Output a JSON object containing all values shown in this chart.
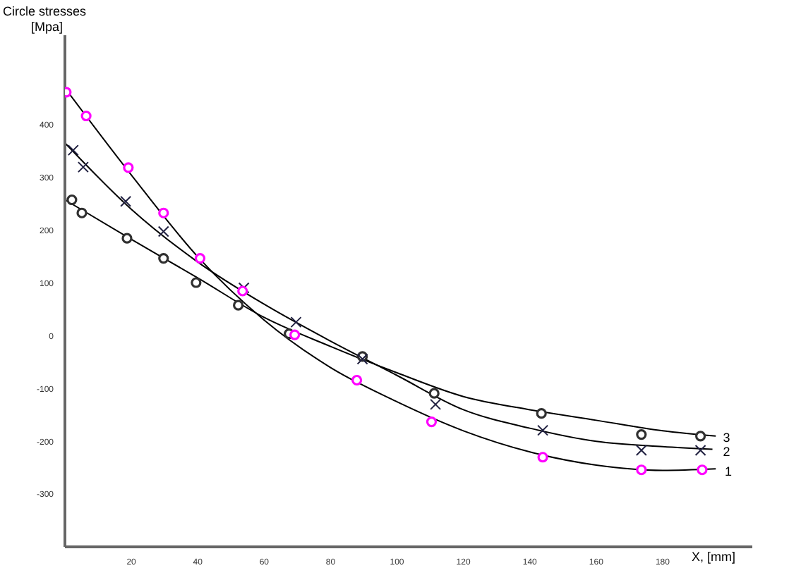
{
  "chart_data": {
    "type": "scatter",
    "title": "Circle stresses",
    "ylabel": "[Mpa]",
    "xlabel": "X, [mm]",
    "xlim": [
      0,
      207
    ],
    "ylim": [
      -400,
      570
    ],
    "xticks": [
      20,
      40,
      60,
      80,
      100,
      120,
      140,
      160,
      180
    ],
    "yticks": [
      -300,
      -200,
      -100,
      0,
      100,
      200,
      300,
      400
    ],
    "grid": false,
    "legend": false,
    "series": [
      {
        "name": "1",
        "marker": "circle",
        "color": "#ff00ff",
        "x": [
          0.4,
          6.4,
          19.1,
          29.7,
          40.7,
          53.5,
          69.2,
          87.9,
          110.4,
          143.9,
          173.6,
          191.9
        ],
        "values": [
          462,
          417,
          319,
          233,
          147,
          85,
          2,
          -84,
          -163,
          -230,
          -254,
          -254
        ]
      },
      {
        "name": "2",
        "marker": "cross",
        "color": "#202040",
        "x": [
          2.5,
          5.5,
          18.3,
          29.7,
          53.9,
          69.6,
          89.6,
          111.6,
          143.9,
          173.6,
          191.4
        ],
        "values": [
          352,
          320,
          255,
          198,
          91,
          26,
          -44,
          -130,
          -179,
          -217,
          -217
        ]
      },
      {
        "name": "3",
        "marker": "circle",
        "color": "#303030",
        "x": [
          2.1,
          5.1,
          18.7,
          29.7,
          39.5,
          52.2,
          67.5,
          89.6,
          111.2,
          143.5,
          173.6,
          191.4
        ],
        "values": [
          258,
          233,
          185,
          147,
          101,
          58,
          4,
          -39,
          -109,
          -147,
          -187,
          -190
        ]
      },
      {
        "type": "line",
        "marker": "none",
        "color": "#000000",
        "x": [
          0,
          20,
          40,
          60,
          80,
          100,
          120,
          140,
          160,
          180,
          196
        ],
        "values": [
          470,
          305,
          150,
          30,
          -60,
          -125,
          -180,
          -220,
          -245,
          -255,
          -252
        ]
      },
      {
        "type": "line",
        "marker": "none",
        "color": "#000000",
        "x": [
          0,
          20,
          40,
          60,
          80,
          100,
          120,
          140,
          160,
          180,
          195
        ],
        "values": [
          366,
          240,
          140,
          60,
          -10,
          -75,
          -140,
          -175,
          -200,
          -210,
          -215
        ]
      },
      {
        "type": "line",
        "marker": "none",
        "color": "#000000",
        "x": [
          0,
          20,
          40,
          60,
          80,
          100,
          120,
          140,
          160,
          180,
          196
        ],
        "values": [
          258,
          183,
          110,
          35,
          -20,
          -70,
          -115,
          -140,
          -160,
          -180,
          -190
        ]
      }
    ]
  }
}
